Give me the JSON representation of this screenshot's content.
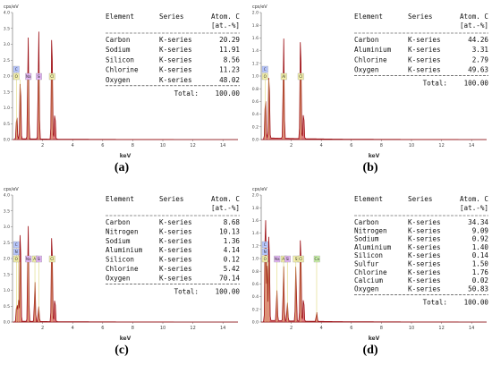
{
  "colors": {
    "spectrum": "#9b0d12",
    "spectrum_fill": "#c4141c",
    "marker_blue": "#b8c7ff",
    "marker_purple": "#e3b6f5",
    "marker_yellow": "#f3f0a8",
    "marker_green": "#c9f2a8",
    "marker_line": "#d8d060"
  },
  "chart_data": [
    {
      "type": "table",
      "caption": "(a)",
      "y_unit": "cps/eV",
      "xlabel": "keV",
      "xlim": [
        0,
        15
      ],
      "ylim": [
        0,
        4.0
      ],
      "yticks": [
        "0.0",
        "0.5",
        "1.0",
        "1.5",
        "2.0",
        "2.5",
        "3.0",
        "3.5",
        "4.0"
      ],
      "xticks": [
        "2",
        "4",
        "6",
        "8",
        "10",
        "12",
        "14"
      ],
      "markers": [
        "C",
        "O",
        "Na",
        "Si",
        "Cl"
      ],
      "peaks": [
        {
          "x": 0.28,
          "y": 0.8
        },
        {
          "x": 0.52,
          "y": 2.1
        },
        {
          "x": 1.04,
          "y": 3.35
        },
        {
          "x": 1.74,
          "y": 3.55
        },
        {
          "x": 2.62,
          "y": 3.8
        },
        {
          "x": 2.82,
          "y": 0.9
        }
      ],
      "table_header": [
        "Element",
        "Series",
        "Atom. C",
        "[at.-%]"
      ],
      "rows": [
        [
          "Carbon",
          "K-series",
          "20.29"
        ],
        [
          "Sodium",
          "K-series",
          "11.91"
        ],
        [
          "Silicon",
          "K-series",
          "8.56"
        ],
        [
          "Chlorine",
          "K-series",
          "11.23"
        ],
        [
          "Oxygen",
          "K-series",
          "48.02"
        ]
      ],
      "total_label": "Total:",
      "total_value": "100.00"
    },
    {
      "type": "table",
      "caption": "(b)",
      "y_unit": "cps/eV",
      "xlabel": "keV",
      "xlim": [
        0,
        15
      ],
      "ylim": [
        0,
        2.0
      ],
      "yticks": [
        "0.0",
        "0.2",
        "0.4",
        "0.6",
        "0.8",
        "1.0",
        "1.2",
        "1.4",
        "1.6",
        "1.8",
        "2.0"
      ],
      "xticks": [
        "2",
        "4",
        "6",
        "8",
        "10",
        "12",
        "14"
      ],
      "markers": [
        "C",
        "O",
        "Al",
        "Cl"
      ],
      "peaks": [
        {
          "x": 0.28,
          "y": 0.7
        },
        {
          "x": 0.52,
          "y": 1.15
        },
        {
          "x": 1.49,
          "y": 1.65
        },
        {
          "x": 2.62,
          "y": 1.85
        },
        {
          "x": 2.82,
          "y": 0.45
        }
      ],
      "table_header": [
        "Element",
        "Series",
        "Atom. C",
        "[at.-%]"
      ],
      "rows": [
        [
          "Carbon",
          "K-series",
          "44.26"
        ],
        [
          "Aluminium",
          "K-series",
          "3.31"
        ],
        [
          "Chlorine",
          "K-series",
          "2.79"
        ],
        [
          "Oxygen",
          "K-series",
          "49.63"
        ]
      ],
      "total_label": "Total:",
      "total_value": "100.00"
    },
    {
      "type": "table",
      "caption": "(c)",
      "y_unit": "cps/eV",
      "xlabel": "keV",
      "xlim": [
        0,
        15
      ],
      "ylim": [
        0,
        4.0
      ],
      "yticks": [
        "0.0",
        "0.5",
        "1.0",
        "1.5",
        "2.0",
        "2.5",
        "3.0",
        "3.5",
        "4.0"
      ],
      "xticks": [
        "2",
        "4",
        "6",
        "8",
        "10",
        "12",
        "14"
      ],
      "markers": [
        "C",
        "N",
        "O",
        "Na",
        "Al",
        "Si",
        "Cl"
      ],
      "peaks": [
        {
          "x": 0.28,
          "y": 0.6
        },
        {
          "x": 0.39,
          "y": 0.7
        },
        {
          "x": 0.52,
          "y": 3.3
        },
        {
          "x": 1.04,
          "y": 3.15
        },
        {
          "x": 1.49,
          "y": 1.3
        },
        {
          "x": 1.74,
          "y": 0.5
        },
        {
          "x": 2.62,
          "y": 3.2
        },
        {
          "x": 2.82,
          "y": 0.8
        }
      ],
      "table_header": [
        "Element",
        "Series",
        "Atom. C",
        "[at.-%]"
      ],
      "rows": [
        [
          "Carbon",
          "K-series",
          "8.68"
        ],
        [
          "Nitrogen",
          "K-series",
          "10.13"
        ],
        [
          "Sodium",
          "K-series",
          "1.36"
        ],
        [
          "Aluminium",
          "K-series",
          "4.14"
        ],
        [
          "Silicon",
          "K-series",
          "0.12"
        ],
        [
          "Chlorine",
          "K-series",
          "5.42"
        ],
        [
          "Oxygen",
          "K-series",
          "70.14"
        ]
      ],
      "total_label": "Total:",
      "total_value": "100.00"
    },
    {
      "type": "table",
      "caption": "(d)",
      "y_unit": "cps/eV",
      "xlabel": "keV",
      "xlim": [
        0,
        15
      ],
      "ylim": [
        0,
        2.0
      ],
      "yticks": [
        "0.0",
        "0.2",
        "0.4",
        "0.6",
        "0.8",
        "1.0",
        "1.2",
        "1.4",
        "1.6",
        "1.8",
        "2.0"
      ],
      "xticks": [
        "2",
        "4",
        "6",
        "8",
        "10",
        "12",
        "14"
      ],
      "markers": [
        "C",
        "N",
        "O",
        "Na",
        "Al",
        "Si",
        "S",
        "Cl",
        "Ca"
      ],
      "peaks": [
        {
          "x": 0.28,
          "y": 1.9
        },
        {
          "x": 0.39,
          "y": 0.9
        },
        {
          "x": 0.52,
          "y": 1.6
        },
        {
          "x": 1.04,
          "y": 0.5
        },
        {
          "x": 1.49,
          "y": 0.9
        },
        {
          "x": 1.74,
          "y": 0.3
        },
        {
          "x": 2.31,
          "y": 0.9
        },
        {
          "x": 2.62,
          "y": 1.55
        },
        {
          "x": 2.82,
          "y": 0.4
        },
        {
          "x": 3.69,
          "y": 0.15
        }
      ],
      "table_header": [
        "Element",
        "Series",
        "Atom. C",
        "[at.-%]"
      ],
      "rows": [
        [
          "Carbon",
          "K-series",
          "34.34"
        ],
        [
          "Nitrogen",
          "K-series",
          "9.09"
        ],
        [
          "Sodium",
          "K-series",
          "0.92"
        ],
        [
          "Aluminium",
          "K-series",
          "1.40"
        ],
        [
          "Silicon",
          "K-series",
          "0.14"
        ],
        [
          "Sulfur",
          "K-series",
          "1.50"
        ],
        [
          "Chlorine",
          "K-series",
          "1.76"
        ],
        [
          "Calcium",
          "K-series",
          "0.02"
        ],
        [
          "Oxygen",
          "K-series",
          "50.83"
        ]
      ],
      "total_label": "Total:",
      "total_value": "100.00"
    }
  ]
}
